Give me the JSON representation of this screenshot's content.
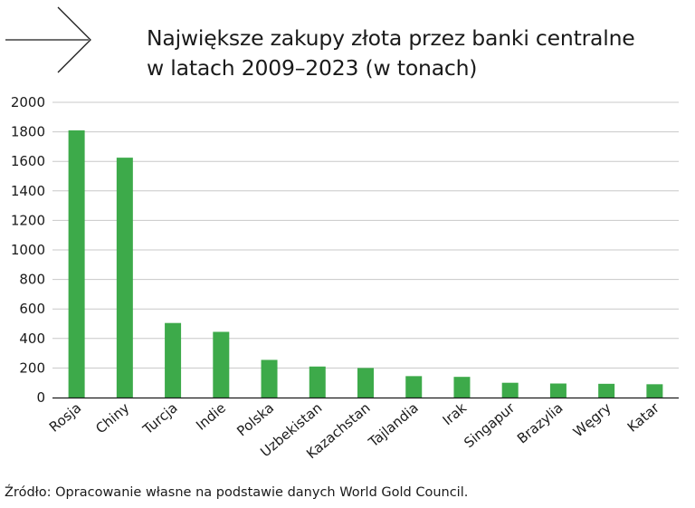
{
  "title_line1": "Największe zakupy złota przez banki centralne",
  "title_line2": "w latach 2009–2023 (w tonach)",
  "source": "Źródło: Opracowanie własne na podstawie danych World Gold Council.",
  "icons": {
    "header": "arrow-right-icon"
  },
  "colors": {
    "bar": "#3daa4a",
    "grid": "#c8c8c8",
    "axis": "#1a1a1a",
    "text": "#1a1a1a"
  },
  "chart_data": {
    "type": "bar",
    "categories": [
      "Rosja",
      "Chiny",
      "Turcja",
      "Indie",
      "Polska",
      "Uzbekistan",
      "Kazachstan",
      "Tajlandia",
      "Irak",
      "Singapur",
      "Brazylia",
      "Węgry",
      "Katar"
    ],
    "values": [
      1810,
      1625,
      505,
      445,
      255,
      210,
      200,
      145,
      140,
      100,
      95,
      93,
      90
    ],
    "yticks": [
      0,
      200,
      400,
      600,
      800,
      1000,
      1200,
      1400,
      1600,
      1800,
      2000
    ],
    "ylim": [
      0,
      2000
    ],
    "grid": true,
    "legend": "none"
  }
}
